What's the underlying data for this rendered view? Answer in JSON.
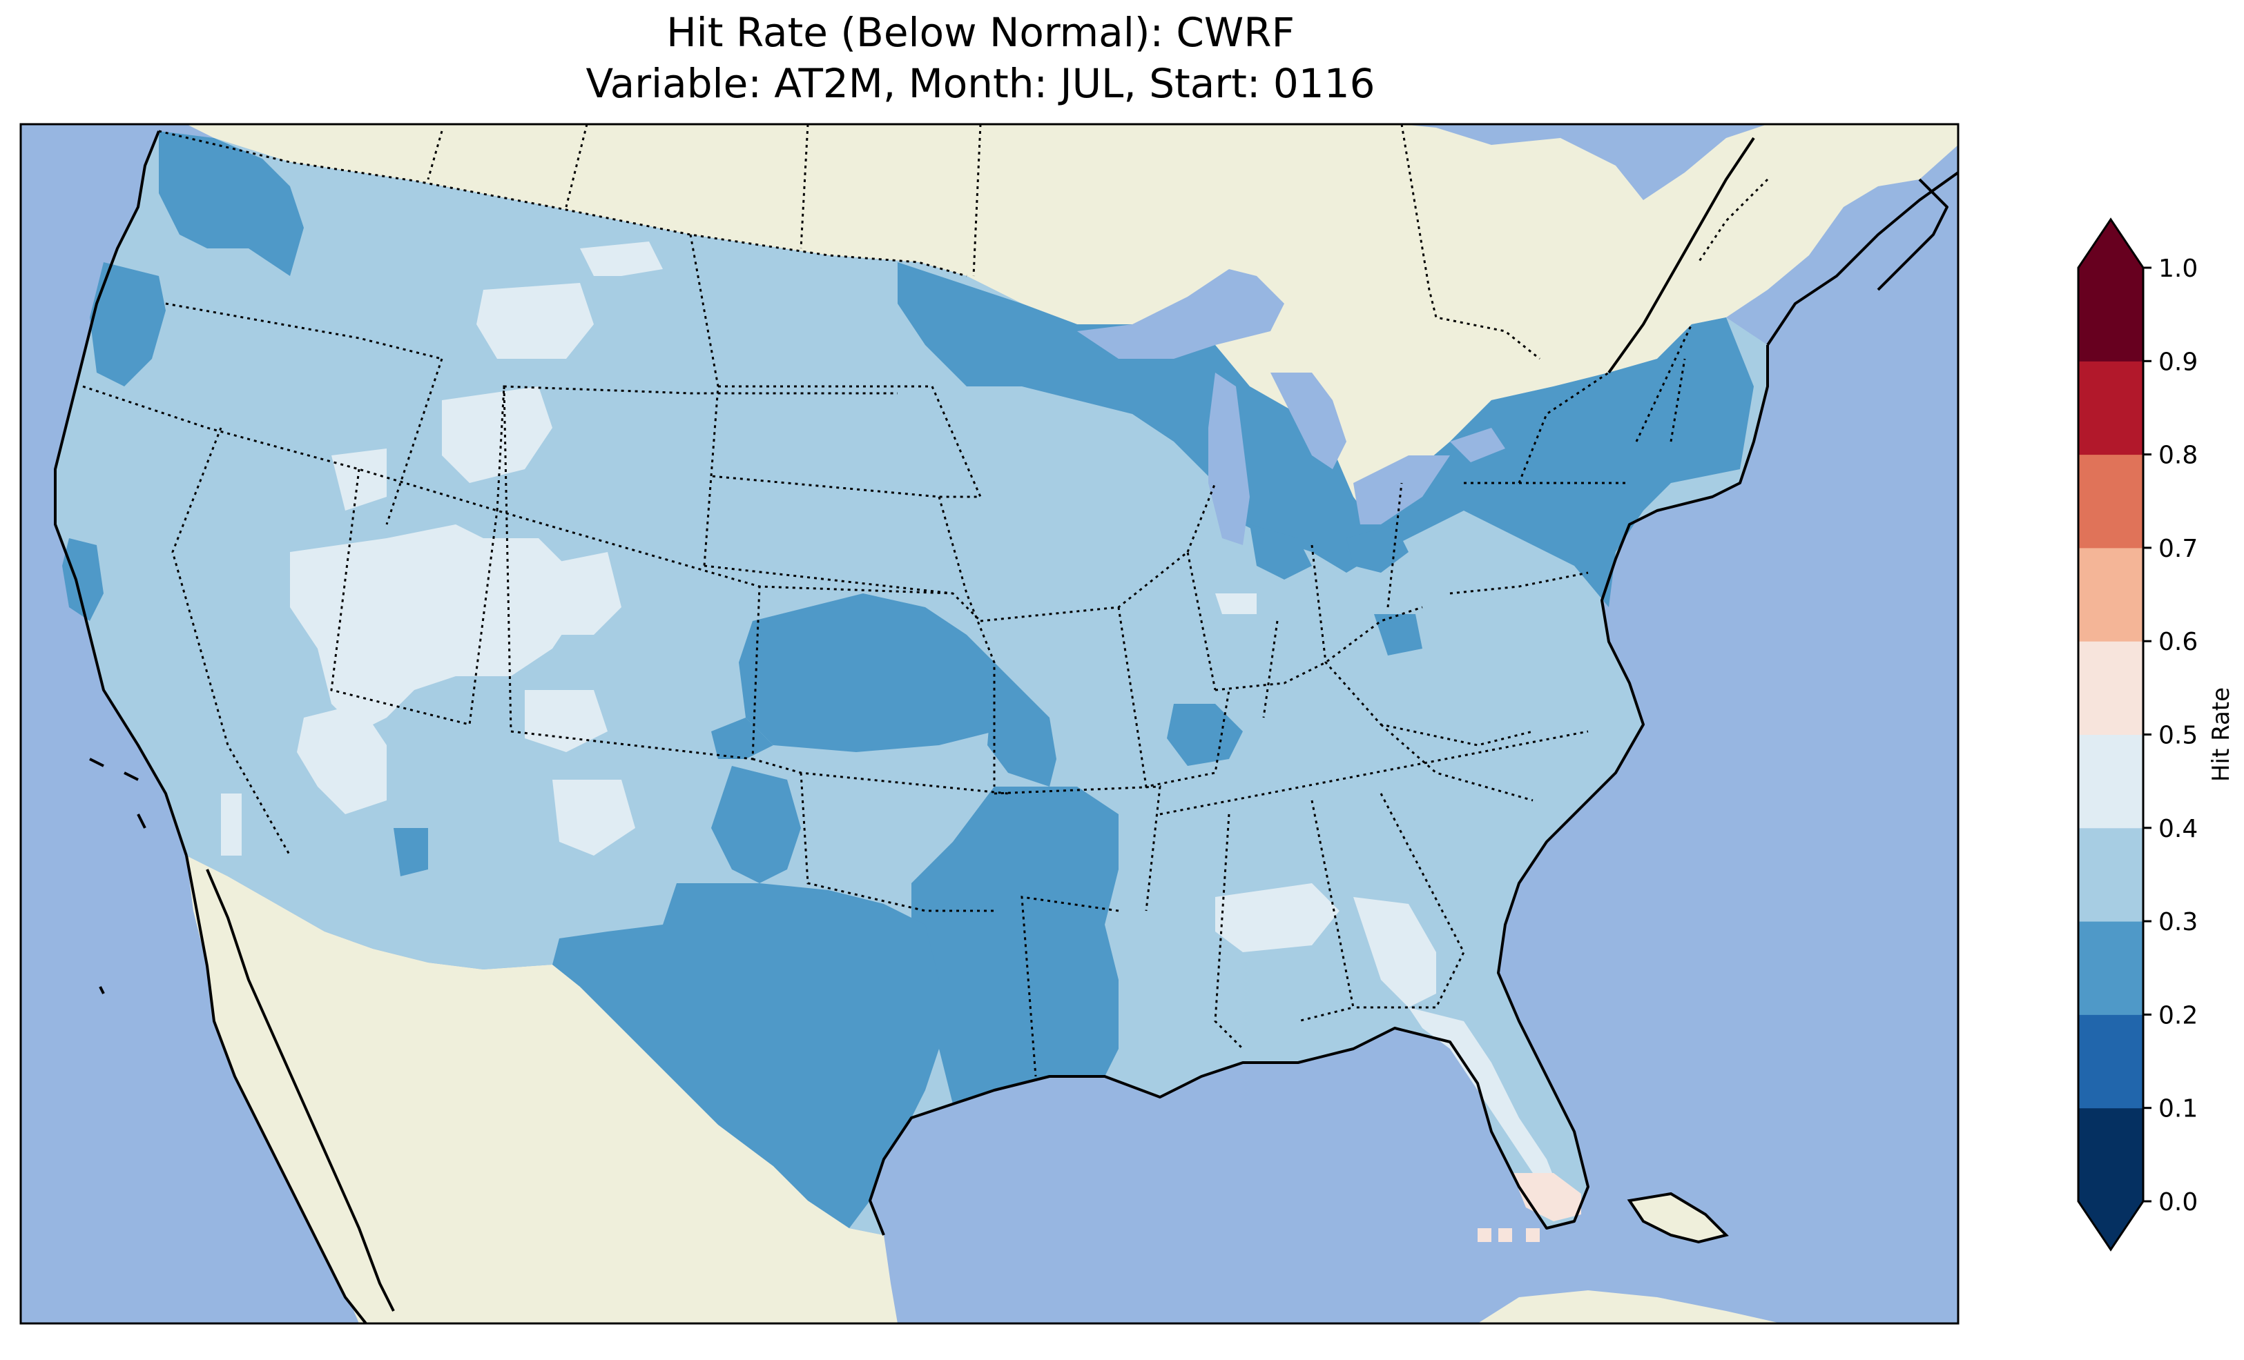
{
  "title": {
    "line1": "Hit Rate (Below Normal): CWRF",
    "line2": "Variable: AT2M, Month: JUL, Start: 0116"
  },
  "colorbar": {
    "label": "Hit Rate",
    "extend": "both",
    "ticks": [
      "0.0",
      "0.1",
      "0.2",
      "0.3",
      "0.4",
      "0.5",
      "0.6",
      "0.7",
      "0.8",
      "0.9",
      "1.0"
    ],
    "bins": [
      {
        "range": [
          0.0,
          0.1
        ],
        "color": "#053061"
      },
      {
        "range": [
          0.1,
          0.2
        ],
        "color": "#2166ac"
      },
      {
        "range": [
          0.2,
          0.3
        ],
        "color": "#4f99c8"
      },
      {
        "range": [
          0.3,
          0.4
        ],
        "color": "#a7cde3"
      },
      {
        "range": [
          0.4,
          0.5
        ],
        "color": "#e0ecf3"
      },
      {
        "range": [
          0.5,
          0.6
        ],
        "color": "#f7e4dc"
      },
      {
        "range": [
          0.6,
          0.7
        ],
        "color": "#f4b597"
      },
      {
        "range": [
          0.7,
          0.8
        ],
        "color": "#e07359"
      },
      {
        "range": [
          0.8,
          0.9
        ],
        "color": "#b2182b"
      },
      {
        "range": [
          0.9,
          1.0
        ],
        "color": "#67001f"
      }
    ],
    "under_color": "#053061",
    "over_color": "#67001f"
  },
  "map": {
    "projection": "Lambert Conformal",
    "region": "Contiguous United States",
    "ocean_color": "#97b6e1",
    "land_color": "#efefdb",
    "coastline_color": "#000000",
    "borders": "dotted state and country boundaries",
    "field_summary": [
      {
        "area": "most of the contiguous U.S.",
        "range": "0.3-0.4"
      },
      {
        "area": "Great Lakes, Upper Midwest and Northeast",
        "range": "0.2-0.3"
      },
      {
        "area": "Texas, Oklahoma and lower Mississippi Valley",
        "range": "0.2-0.3"
      },
      {
        "area": "Kansas",
        "range": "0.2-0.3"
      },
      {
        "area": "Pacific Northwest coast",
        "range": "0.2-0.3"
      },
      {
        "area": "Great Basin, Wyoming, Montana and Utah",
        "range": "0.4-0.5"
      },
      {
        "area": "Florida peninsula and Alabama/Georgia",
        "range": "0.4-0.5"
      },
      {
        "area": "southern tip of Florida",
        "range": "0.5-0.6"
      }
    ]
  }
}
